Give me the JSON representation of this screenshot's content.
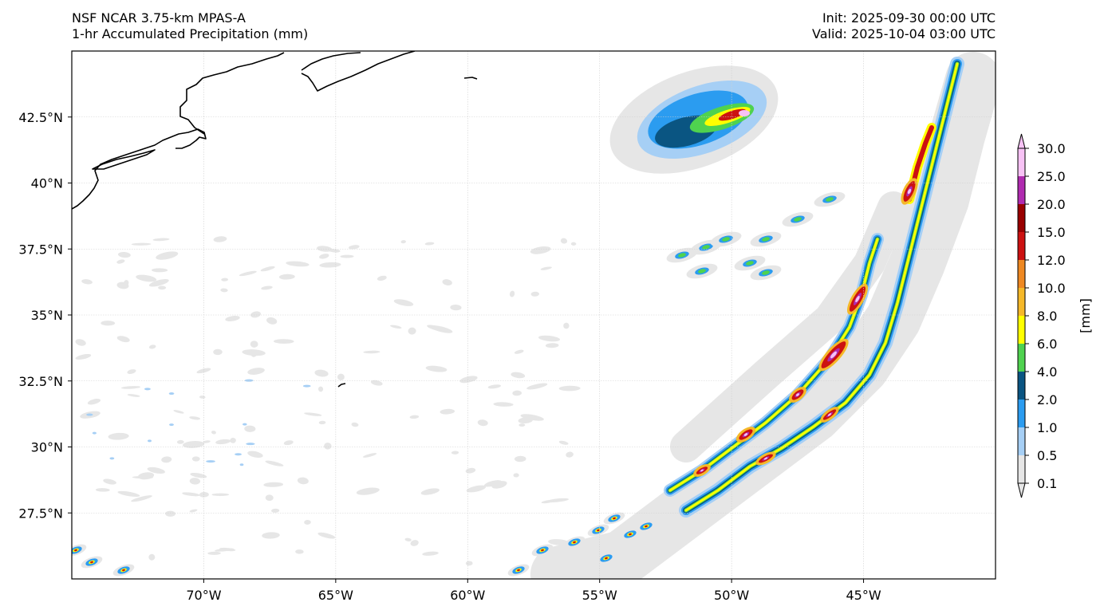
{
  "header": {
    "model": "NSF NCAR 3.75-km MPAS-A",
    "field": "1-hr Accumulated Precipitation (mm)",
    "init": "Init: 2025-09-30 00:00 UTC",
    "valid": "Valid: 2025-10-04 03:00 UTC"
  },
  "map": {
    "lon_range": [
      -75,
      -40
    ],
    "lat_range": [
      25,
      45
    ],
    "lon_ticks": [
      {
        "value": -70,
        "label": "70°W"
      },
      {
        "value": -65,
        "label": "65°W"
      },
      {
        "value": -60,
        "label": "60°W"
      },
      {
        "value": -55,
        "label": "55°W"
      },
      {
        "value": -50,
        "label": "50°W"
      },
      {
        "value": -45,
        "label": "45°W"
      }
    ],
    "lat_ticks": [
      {
        "value": 42.5,
        "label": "42.5°N"
      },
      {
        "value": 40,
        "label": "40°N"
      },
      {
        "value": 37.5,
        "label": "37.5°N"
      },
      {
        "value": 35,
        "label": "35°N"
      },
      {
        "value": 32.5,
        "label": "32.5°N"
      },
      {
        "value": 30,
        "label": "30°N"
      },
      {
        "value": 27.5,
        "label": "27.5°N"
      }
    ],
    "gridlines": true
  },
  "colorbar": {
    "unit_label": "[mm]",
    "levels": [
      "0.1",
      "0.5",
      "1.0",
      "2.0",
      "4.0",
      "6.0",
      "8.0",
      "10.0",
      "12.0",
      "15.0",
      "20.0",
      "25.0",
      "30.0"
    ],
    "colors": [
      "#e6e6e6",
      "#a6cff5",
      "#2b9cf0",
      "#0a5582",
      "#4fd24f",
      "#ffff00",
      "#f5b829",
      "#ee8822",
      "#cc1111",
      "#990000",
      "#b02bb0",
      "#f7c2f5"
    ],
    "extend": "both"
  }
}
